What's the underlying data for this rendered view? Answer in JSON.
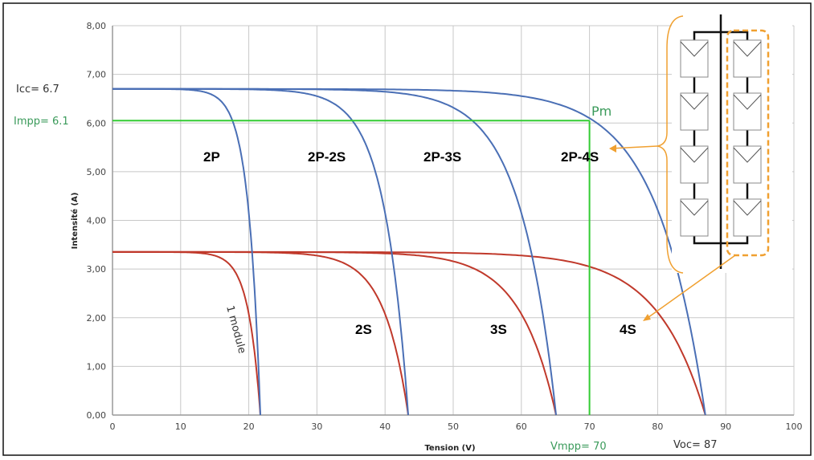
{
  "chart_data": {
    "type": "line",
    "title": "",
    "xlabel": "Tension (V)",
    "ylabel": "Intensité (A)",
    "xlim": [
      0,
      100
    ],
    "ylim": [
      0,
      8
    ],
    "grid": true,
    "x_ticks": [
      "0",
      "10",
      "20",
      "30",
      "40",
      "50",
      "60",
      "70",
      "80",
      "90",
      "100"
    ],
    "y_ticks": [
      "0,00",
      "1,00",
      "2,00",
      "3,00",
      "4,00",
      "5,00",
      "6,00",
      "7,00",
      "8,00"
    ],
    "model": "I(V) = Isc * (1 - exp((V/Voc - 1)/0.081))",
    "series": [
      {
        "name": "1 module",
        "isc": 3.35,
        "voc": 21.7,
        "color": "#c0392b"
      },
      {
        "name": "2S",
        "isc": 3.35,
        "voc": 43.4,
        "color": "#c0392b"
      },
      {
        "name": "3S",
        "isc": 3.35,
        "voc": 65.1,
        "color": "#c0392b"
      },
      {
        "name": "4S",
        "isc": 3.35,
        "voc": 87,
        "color": "#c0392b"
      },
      {
        "name": "2P",
        "isc": 6.7,
        "voc": 21.7,
        "color": "#4a6fb5"
      },
      {
        "name": "2P-2S",
        "isc": 6.7,
        "voc": 43.4,
        "color": "#4a6fb5"
      },
      {
        "name": "2P-3S",
        "isc": 6.7,
        "voc": 65.1,
        "color": "#4a6fb5"
      },
      {
        "name": "2P-4S",
        "isc": 6.7,
        "voc": 87,
        "color": "#4a6fb5"
      }
    ],
    "annotations": {
      "icc": "Icc= 6.7",
      "impp": "Impp= 6.1",
      "vmpp": "Vmpp= 70",
      "voc": "Voc= 87",
      "pm": "Pm",
      "impp_value": 6.05,
      "vmpp_value": 70
    },
    "labels": {
      "l2p": "2P",
      "l2p2s": "2P-2S",
      "l2p3s": "2P-3S",
      "l2p4s": "2P-4S",
      "l2s": "2S",
      "l3s": "3S",
      "l4s": "4S",
      "l1": "1 module"
    },
    "colors": {
      "green": "#33cc33",
      "orange": "#f0a030",
      "annotation_green": "#3a9a5a"
    }
  }
}
